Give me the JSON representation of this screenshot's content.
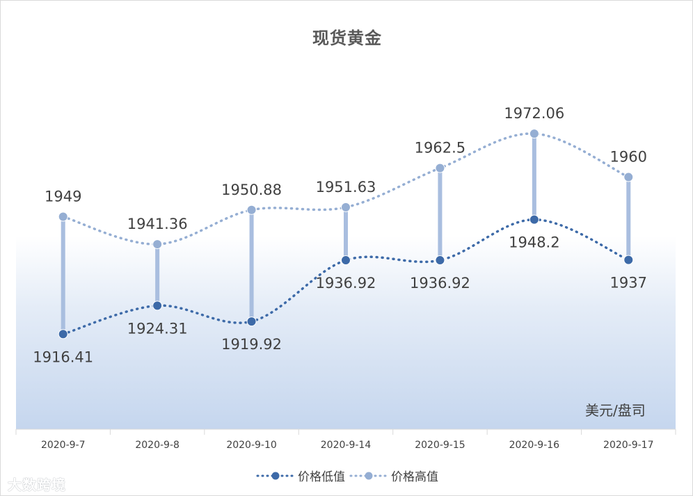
{
  "chart_data": {
    "type": "line",
    "title": "现货黄金",
    "unit": "美元/盘司",
    "categories": [
      "2020-9-7",
      "2020-9-8",
      "2020-9-10",
      "2020-9-14",
      "2020-9-15",
      "2020-9-16",
      "2020-9-17"
    ],
    "series": [
      {
        "name": "价格低值",
        "color": "#3d6aa8",
        "values": [
          1916.41,
          1924.31,
          1919.92,
          1936.92,
          1936.92,
          1948.2,
          1937
        ]
      },
      {
        "name": "价格高值",
        "color": "#95aed3",
        "values": [
          1949,
          1941.36,
          1950.88,
          1951.63,
          1962.5,
          1972.06,
          1960
        ]
      }
    ],
    "ylim": [
      1890,
      1980
    ],
    "grid": false,
    "smooth": true,
    "high_low_lines": true,
    "legend_position": "bottom"
  },
  "watermark": "大数跨境"
}
